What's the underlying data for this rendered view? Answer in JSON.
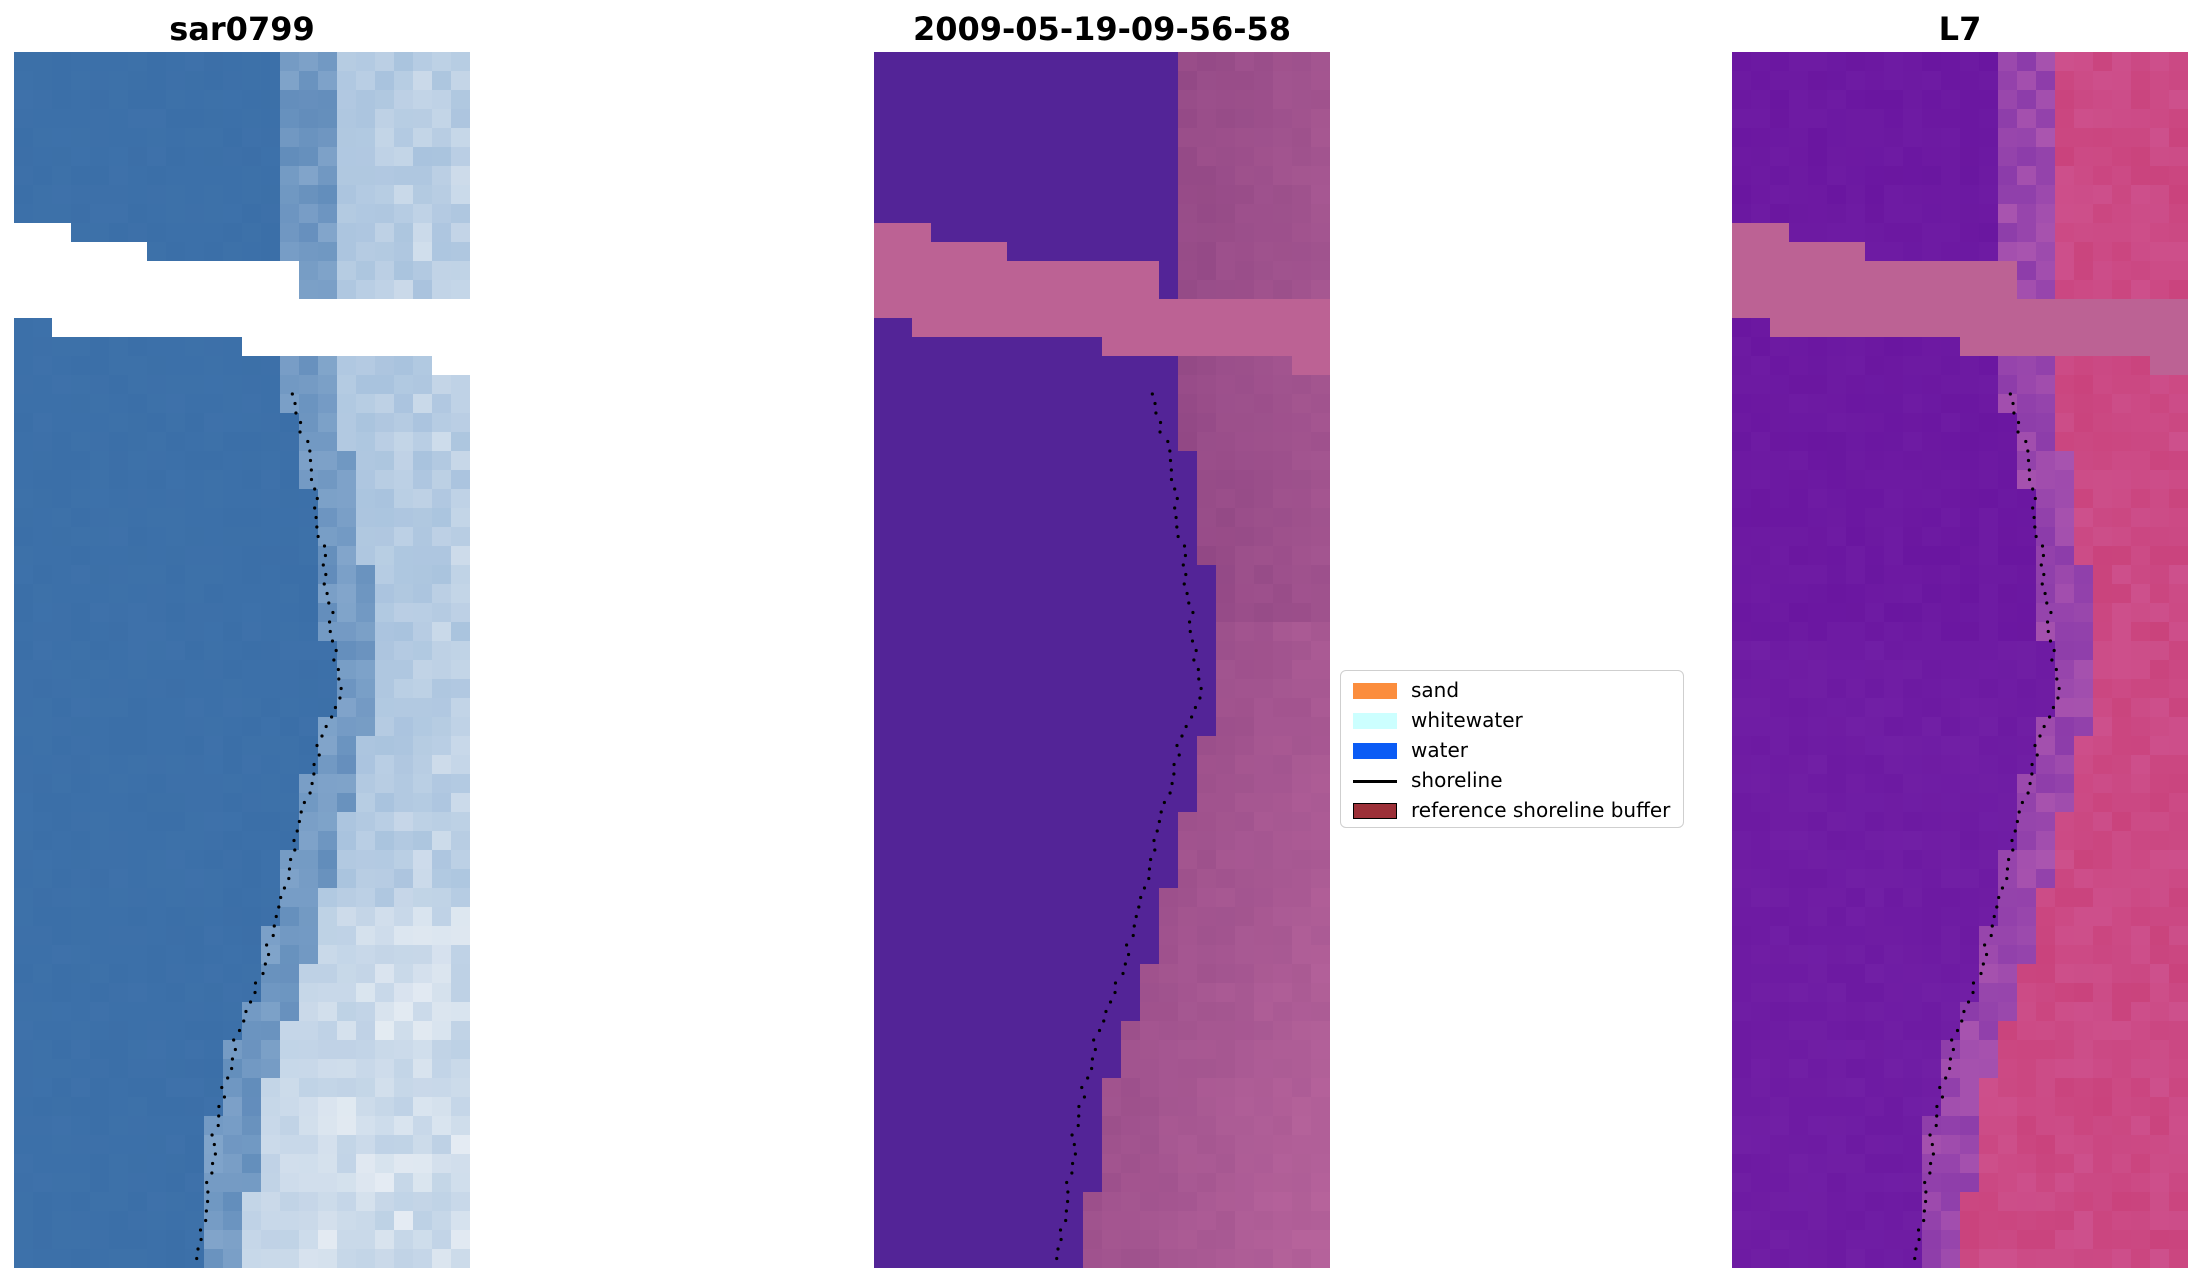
{
  "panels": [
    {
      "title": "sar0799",
      "style": "rgb"
    },
    {
      "title": "2009-05-19-09-56-58",
      "style": "class"
    },
    {
      "title": "L7",
      "style": "index"
    }
  ],
  "legend": {
    "items": [
      {
        "label": "sand",
        "color": "#fb8d3d",
        "kind": "patch"
      },
      {
        "label": "whitewater",
        "color": "#ccffff",
        "kind": "patch"
      },
      {
        "label": "water",
        "color": "#0b5cf5",
        "kind": "patch"
      },
      {
        "label": "shoreline",
        "color": "#000000",
        "kind": "line"
      },
      {
        "label": "reference shoreline buffer",
        "color": "#9c3038",
        "kind": "patch-edged"
      }
    ]
  },
  "colors": {
    "rgb_water": "#3b6fa8",
    "rgb_beach": "#a9c3de",
    "class_water": "#532497",
    "class_land": "#9a4e8a",
    "class_buffer": "#bc6294",
    "index_water": "#6a16a0",
    "index_land": "#c83a72"
  }
}
